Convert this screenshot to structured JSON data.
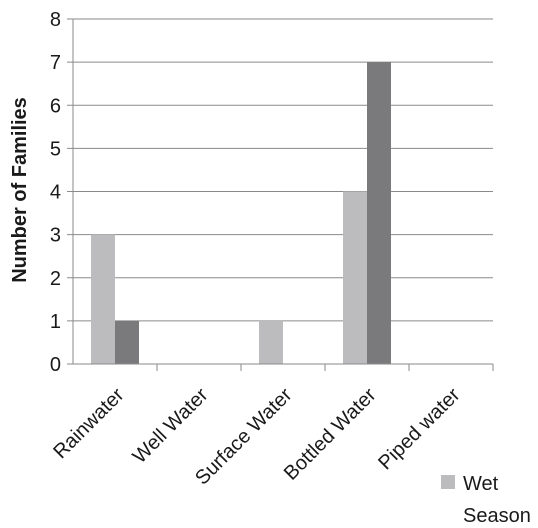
{
  "chart_data": {
    "type": "bar",
    "title": "",
    "xlabel": "",
    "ylabel": "Number of Families",
    "ylim": [
      0,
      8
    ],
    "yticks": [
      0,
      1,
      2,
      3,
      4,
      5,
      6,
      7,
      8
    ],
    "grid": true,
    "legend_position": "bottom-right",
    "categories": [
      "Rainwater",
      "Well Water",
      "Surface Water",
      "Bottled Water",
      "Piped water"
    ],
    "series": [
      {
        "name": "Wet Season",
        "color": "#bcbcbf",
        "values": [
          3,
          0,
          1,
          4,
          0
        ]
      },
      {
        "color": "#7a7a7c",
        "values": [
          1,
          0,
          0,
          7,
          0
        ]
      }
    ]
  }
}
